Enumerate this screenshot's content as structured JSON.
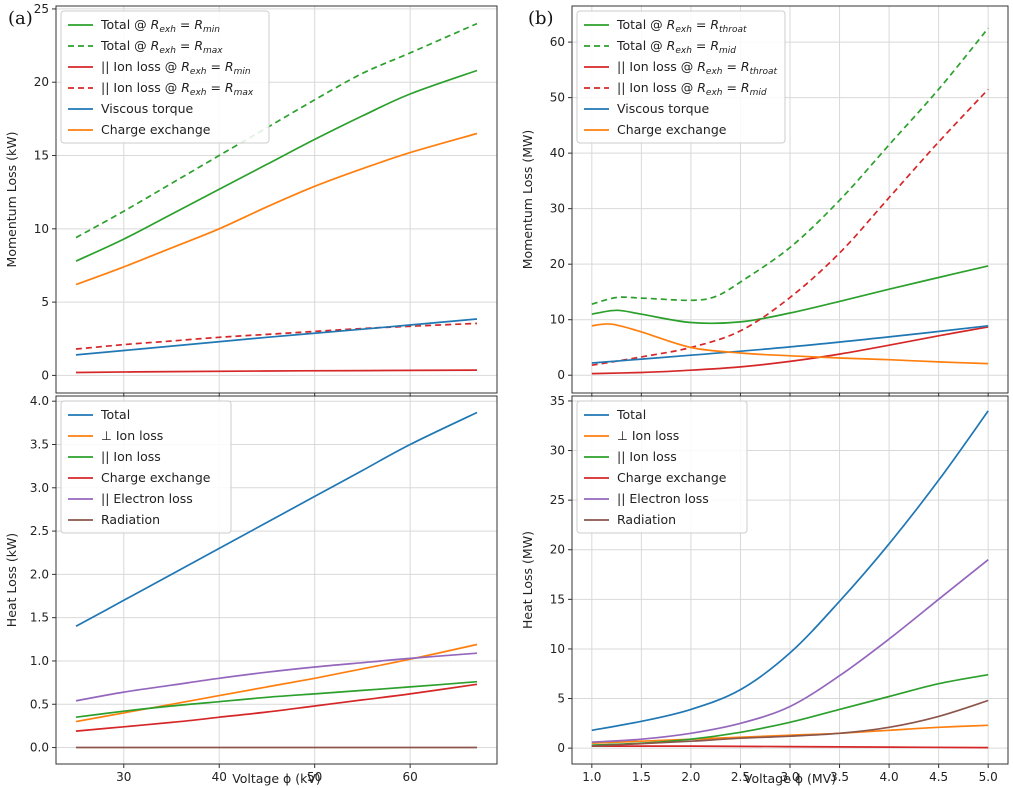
{
  "panel_labels": [
    "(a)",
    "(b)"
  ],
  "chart_data": [
    {
      "type": "line",
      "panel": "(a) top",
      "ylabel": "Momentum Loss (kW)",
      "xlabel": "",
      "xlim": [
        22.9,
        69.1
      ],
      "ylim": [
        -1.2,
        25.2
      ],
      "xticks": [
        30,
        40,
        50,
        60
      ],
      "yticks": [
        0,
        5,
        10,
        15,
        20,
        25
      ],
      "grid": true,
      "legend_position": "top-left",
      "series": [
        {
          "name": "Total @ R_exh = R_min",
          "legend": {
            "prefix": "Total @ ",
            "sub1": "exh",
            "mid": " = ",
            "sub2": "min"
          },
          "color": "#2ca02c",
          "dash": "solid",
          "x": [
            25,
            30,
            35,
            40,
            45,
            50,
            55,
            60,
            67
          ],
          "y": [
            7.8,
            9.3,
            11.0,
            12.7,
            14.4,
            16.1,
            17.7,
            19.2,
            20.8
          ]
        },
        {
          "name": "Total @ R_exh = R_max",
          "legend": {
            "prefix": "Total @ ",
            "sub1": "exh",
            "mid": " = ",
            "sub2": "max"
          },
          "color": "#2ca02c",
          "dash": "dashed",
          "x": [
            25,
            30,
            35,
            40,
            45,
            50,
            55,
            60,
            67
          ],
          "y": [
            9.4,
            11.2,
            13.1,
            15.0,
            16.9,
            18.8,
            20.6,
            22.0,
            24.0
          ]
        },
        {
          "name": "|| Ion loss @ R_exh = R_min",
          "legend": {
            "prefix": "|| Ion  loss @ ",
            "sub1": "exh",
            "mid": " = ",
            "sub2": "min"
          },
          "color": "#d62728",
          "dash": "solid",
          "x": [
            25,
            35,
            45,
            55,
            67
          ],
          "y": [
            0.2,
            0.26,
            0.3,
            0.33,
            0.36
          ]
        },
        {
          "name": "|| Ion loss @ R_exh = R_max",
          "legend": {
            "prefix": "|| Ion  loss @ ",
            "sub1": "exh",
            "mid": " = ",
            "sub2": "max"
          },
          "color": "#d62728",
          "dash": "dashed",
          "x": [
            25,
            30,
            35,
            40,
            45,
            50,
            55,
            60,
            67
          ],
          "y": [
            1.8,
            2.1,
            2.35,
            2.6,
            2.8,
            3.0,
            3.2,
            3.35,
            3.55
          ]
        },
        {
          "name": "Viscous torque",
          "legend": {
            "prefix": "Viscous torque"
          },
          "color": "#1f77b4",
          "dash": "solid",
          "x": [
            25,
            35,
            45,
            55,
            67
          ],
          "y": [
            1.4,
            2.0,
            2.6,
            3.15,
            3.85
          ]
        },
        {
          "name": "Charge exchange",
          "legend": {
            "prefix": "Charge exchange"
          },
          "color": "#ff7f0e",
          "dash": "solid",
          "x": [
            25,
            30,
            35,
            40,
            45,
            50,
            55,
            60,
            67
          ],
          "y": [
            6.2,
            7.4,
            8.7,
            10.0,
            11.5,
            12.9,
            14.1,
            15.2,
            16.5
          ]
        }
      ]
    },
    {
      "type": "line",
      "panel": "(a) bottom",
      "ylabel": "Heat Loss (kW)",
      "xlabel": "Voltage ϕ (kV)",
      "xlim": [
        22.9,
        69.1
      ],
      "ylim": [
        -0.19,
        4.06
      ],
      "xticks": [
        30,
        40,
        50,
        60
      ],
      "yticks": [
        0.0,
        0.5,
        1.0,
        1.5,
        2.0,
        2.5,
        3.0,
        3.5,
        4.0
      ],
      "grid": true,
      "legend_position": "top-left",
      "series": [
        {
          "name": "Total",
          "legend": {
            "prefix": "Total"
          },
          "color": "#1f77b4",
          "dash": "solid",
          "x": [
            25,
            30,
            35,
            40,
            45,
            50,
            55,
            60,
            67
          ],
          "y": [
            1.4,
            1.7,
            2.0,
            2.3,
            2.6,
            2.9,
            3.2,
            3.5,
            3.87
          ]
        },
        {
          "name": "⊥ Ion loss",
          "legend": {
            "prefix": "⊥ Ion  loss"
          },
          "color": "#ff7f0e",
          "dash": "solid",
          "x": [
            25,
            30,
            35,
            40,
            45,
            50,
            55,
            60,
            67
          ],
          "y": [
            0.3,
            0.4,
            0.5,
            0.6,
            0.7,
            0.8,
            0.91,
            1.02,
            1.19
          ]
        },
        {
          "name": "|| Ion loss",
          "legend": {
            "prefix": "|| Ion  loss"
          },
          "color": "#2ca02c",
          "dash": "solid",
          "x": [
            25,
            30,
            35,
            40,
            45,
            50,
            55,
            60,
            67
          ],
          "y": [
            0.35,
            0.42,
            0.48,
            0.53,
            0.58,
            0.62,
            0.66,
            0.7,
            0.76
          ]
        },
        {
          "name": "Charge exchange",
          "legend": {
            "prefix": "Charge exchange"
          },
          "color": "#d62728",
          "dash": "solid",
          "x": [
            25,
            30,
            35,
            40,
            45,
            50,
            55,
            60,
            67
          ],
          "y": [
            0.19,
            0.24,
            0.29,
            0.35,
            0.41,
            0.48,
            0.55,
            0.62,
            0.73
          ]
        },
        {
          "name": "|| Electron loss",
          "legend": {
            "prefix": "|| Electron  loss"
          },
          "color": "#9467bd",
          "dash": "solid",
          "x": [
            25,
            30,
            35,
            40,
            45,
            50,
            55,
            60,
            67
          ],
          "y": [
            0.54,
            0.64,
            0.72,
            0.8,
            0.87,
            0.93,
            0.98,
            1.03,
            1.09
          ]
        },
        {
          "name": "Radiation",
          "legend": {
            "prefix": "Radiation"
          },
          "color": "#8c564b",
          "dash": "solid",
          "x": [
            25,
            67
          ],
          "y": [
            0.0,
            0.0
          ]
        }
      ]
    },
    {
      "type": "line",
      "panel": "(b) top",
      "ylabel": "Momentum Loss (MW)",
      "xlabel": "",
      "xlim": [
        0.8,
        5.2
      ],
      "ylim": [
        -3.2,
        66.5
      ],
      "xticks": [
        1.0,
        1.5,
        2.0,
        2.5,
        3.0,
        3.5,
        4.0,
        4.5,
        5.0
      ],
      "yticks": [
        0,
        10,
        20,
        30,
        40,
        50,
        60
      ],
      "grid": true,
      "legend_position": "top-left",
      "series": [
        {
          "name": "Total @ R_exh = R_throat",
          "legend": {
            "prefix": "Total @ ",
            "sub1": "exh",
            "mid": " = ",
            "sub2": "throat"
          },
          "color": "#2ca02c",
          "dash": "solid",
          "x": [
            1.0,
            1.25,
            1.5,
            2.0,
            2.5,
            3.0,
            3.5,
            4.0,
            4.5,
            5.0
          ],
          "y": [
            11.0,
            11.7,
            11.0,
            9.5,
            9.6,
            11.2,
            13.3,
            15.5,
            17.6,
            19.7
          ]
        },
        {
          "name": "Total @ R_exh = R_mid",
          "legend": {
            "prefix": "Total @ ",
            "sub1": "exh",
            "mid": " = ",
            "sub2": "mid"
          },
          "color": "#2ca02c",
          "dash": "dashed",
          "x": [
            1.0,
            1.25,
            1.5,
            2.0,
            2.25,
            2.5,
            3.0,
            3.5,
            4.0,
            4.5,
            5.0
          ],
          "y": [
            12.8,
            14.0,
            13.9,
            13.5,
            14.2,
            16.8,
            23.0,
            31.5,
            41.5,
            51.5,
            62.5
          ]
        },
        {
          "name": "|| Ion loss @ R_exh = R_throat",
          "legend": {
            "prefix": "|| Ion  loss @ ",
            "sub1": "exh",
            "mid": " = ",
            "sub2": "throat"
          },
          "color": "#d62728",
          "dash": "solid",
          "x": [
            1.0,
            1.5,
            2.0,
            2.5,
            3.0,
            3.5,
            4.0,
            4.5,
            5.0
          ],
          "y": [
            0.3,
            0.5,
            0.9,
            1.5,
            2.5,
            3.8,
            5.4,
            7.1,
            8.7
          ]
        },
        {
          "name": "|| Ion loss @ R_exh = R_mid",
          "legend": {
            "prefix": "|| Ion  loss @ ",
            "sub1": "exh",
            "mid": " = ",
            "sub2": "mid"
          },
          "color": "#d62728",
          "dash": "dashed",
          "x": [
            1.0,
            1.5,
            2.0,
            2.5,
            3.0,
            3.5,
            4.0,
            4.5,
            5.0
          ],
          "y": [
            1.8,
            3.3,
            5.0,
            8.0,
            14.0,
            22.0,
            32.0,
            42.0,
            51.5
          ]
        },
        {
          "name": "Viscous torque",
          "legend": {
            "prefix": "Viscous torque"
          },
          "color": "#1f77b4",
          "dash": "solid",
          "x": [
            1.0,
            2.0,
            3.0,
            4.0,
            5.0
          ],
          "y": [
            2.2,
            3.6,
            5.1,
            6.9,
            8.9
          ]
        },
        {
          "name": "Charge exchange",
          "legend": {
            "prefix": "Charge exchange"
          },
          "color": "#ff7f0e",
          "dash": "solid",
          "x": [
            1.0,
            1.2,
            1.5,
            2.0,
            2.5,
            3.0,
            3.5,
            4.0,
            4.5,
            5.0
          ],
          "y": [
            8.9,
            9.2,
            7.8,
            5.0,
            4.0,
            3.5,
            3.1,
            2.8,
            2.4,
            2.1
          ]
        }
      ]
    },
    {
      "type": "line",
      "panel": "(b) bottom",
      "ylabel": "Heat Loss (MW)",
      "xlabel": "Voltage ϕ (MV)",
      "xlim": [
        0.8,
        5.2
      ],
      "ylim": [
        -1.6,
        35.5
      ],
      "xticks": [
        1.0,
        1.5,
        2.0,
        2.5,
        3.0,
        3.5,
        4.0,
        4.5,
        5.0
      ],
      "yticks": [
        0,
        5,
        10,
        15,
        20,
        25,
        30,
        35
      ],
      "grid": true,
      "legend_position": "top-left",
      "series": [
        {
          "name": "Total",
          "legend": {
            "prefix": "Total"
          },
          "color": "#1f77b4",
          "dash": "solid",
          "x": [
            1.0,
            1.5,
            2.0,
            2.5,
            3.0,
            3.5,
            4.0,
            4.5,
            5.0
          ],
          "y": [
            1.8,
            2.7,
            3.9,
            5.9,
            9.6,
            14.8,
            20.6,
            27.0,
            34.0
          ]
        },
        {
          "name": "⊥ Ion loss",
          "legend": {
            "prefix": "⊥ Ion  loss"
          },
          "color": "#ff7f0e",
          "dash": "solid",
          "x": [
            1.0,
            1.5,
            2.0,
            2.5,
            3.0,
            3.5,
            4.0,
            4.5,
            5.0
          ],
          "y": [
            0.5,
            0.7,
            0.9,
            1.1,
            1.3,
            1.5,
            1.8,
            2.1,
            2.3
          ]
        },
        {
          "name": "|| Ion loss",
          "legend": {
            "prefix": "|| Ion  loss"
          },
          "color": "#2ca02c",
          "dash": "solid",
          "x": [
            1.0,
            1.5,
            2.0,
            2.5,
            3.0,
            3.5,
            4.0,
            4.5,
            5.0
          ],
          "y": [
            0.3,
            0.5,
            0.9,
            1.6,
            2.6,
            3.9,
            5.2,
            6.5,
            7.4
          ]
        },
        {
          "name": "Charge exchange",
          "legend": {
            "prefix": "Charge exchange"
          },
          "color": "#d62728",
          "dash": "solid",
          "x": [
            1.0,
            2.0,
            3.0,
            4.0,
            5.0
          ],
          "y": [
            0.2,
            0.2,
            0.15,
            0.1,
            0.05
          ]
        },
        {
          "name": "|| Electron loss",
          "legend": {
            "prefix": "|| Electron  loss"
          },
          "color": "#9467bd",
          "dash": "solid",
          "x": [
            1.0,
            1.5,
            2.0,
            2.5,
            3.0,
            3.5,
            4.0,
            4.5,
            5.0
          ],
          "y": [
            0.6,
            0.9,
            1.5,
            2.5,
            4.2,
            7.3,
            11.0,
            15.0,
            19.0
          ]
        },
        {
          "name": "Radiation",
          "legend": {
            "prefix": "Radiation"
          },
          "color": "#8c564b",
          "dash": "solid",
          "x": [
            1.0,
            1.5,
            2.0,
            2.5,
            3.0,
            3.5,
            4.0,
            4.5,
            5.0
          ],
          "y": [
            0.2,
            0.45,
            0.7,
            1.0,
            1.2,
            1.5,
            2.1,
            3.2,
            4.8
          ]
        }
      ]
    }
  ]
}
